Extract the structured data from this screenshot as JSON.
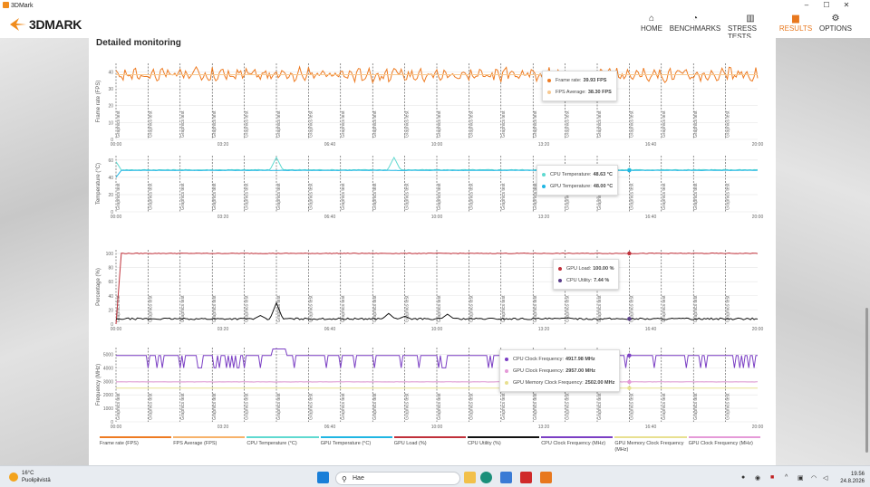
{
  "window": {
    "title": "3DMark",
    "controls": [
      "–",
      "☐",
      "✕"
    ]
  },
  "nav": {
    "brand": "3DMARK",
    "items": [
      {
        "label": "HOME",
        "icon": "home-icon",
        "glyph": "⌂",
        "active": false
      },
      {
        "label": "BENCHMARKS",
        "icon": "speedometer-icon",
        "glyph": "◔",
        "active": false
      },
      {
        "label": "STRESS TESTS",
        "icon": "bar-chart-icon",
        "glyph": "▥",
        "active": false
      },
      {
        "label": "RESULTS",
        "icon": "results-chart-icon",
        "glyph": "▆",
        "active": true
      },
      {
        "label": "OPTIONS",
        "icon": "gear-icon",
        "glyph": "⚙",
        "active": false
      }
    ],
    "accent": "#e8781e"
  },
  "panel": {
    "title": "Detailed monitoring"
  },
  "x_ticks": [
    "00:00",
    "03:20",
    "06:40",
    "10:00",
    "13:20",
    "16:40",
    "20:00"
  ],
  "x_max_sec": 1200,
  "test_marker_label": "Graphics test",
  "test_markers_sec": [
    0,
    60,
    120,
    180,
    240,
    300,
    360,
    420,
    480,
    540,
    600,
    660,
    720,
    780,
    840,
    900,
    960,
    1020,
    1080,
    1140
  ],
  "chart_data": [
    {
      "type": "line",
      "ylabel": "Frame rate (FPS)",
      "ylim": [
        0,
        45
      ],
      "yticks": [
        0,
        10,
        20,
        30,
        40
      ],
      "series": [
        {
          "name": "Frame rate (FPS)",
          "color": "#ee7b22",
          "base": 38.3,
          "noise": 3,
          "spikes": []
        },
        {
          "name": "FPS Average (FPS)",
          "color": "#f7c890",
          "base": 38.3,
          "noise": 0,
          "spikes": []
        }
      ],
      "tooltip": {
        "at_sec": 840,
        "rows": [
          {
            "label": "Frame rate:",
            "value": "39.93 FPS",
            "color": "#ee7b22"
          },
          {
            "label": "FPS Average:",
            "value": "38.30 FPS",
            "color": "#f7c890"
          }
        ]
      }
    },
    {
      "type": "line",
      "ylabel": "Temperature (°C)",
      "ylim": [
        0,
        65
      ],
      "yticks": [
        0,
        20,
        40,
        60
      ],
      "series": [
        {
          "name": "CPU Temperature (°C)",
          "color": "#5fd9d0",
          "base": 48.6,
          "noise": 0.4,
          "start": 58,
          "spikes": [
            [
              300,
              63
            ],
            [
              520,
              63
            ]
          ]
        },
        {
          "name": "GPU Temperature (°C)",
          "color": "#1fb6e3",
          "base": 48.0,
          "noise": 0.2,
          "start": 40,
          "spikes": []
        }
      ],
      "tooltip": {
        "at_sec": 960,
        "rows": [
          {
            "label": "CPU Temperature:",
            "value": "48.63 °C",
            "color": "#5fd9d0"
          },
          {
            "label": "GPU Temperature:",
            "value": "48.00 °C",
            "color": "#1fb6e3"
          }
        ]
      }
    },
    {
      "type": "line",
      "ylabel": "Percentage (%)",
      "ylim": [
        0,
        105
      ],
      "yticks": [
        0,
        20,
        40,
        60,
        80,
        100
      ],
      "series": [
        {
          "name": "GPU Load (%)",
          "color": "#c0303a",
          "base": 100,
          "noise": 0.5,
          "start": 0,
          "spikes": []
        },
        {
          "name": "CPU Utility (%)",
          "color": "#111111",
          "base": 7.4,
          "noise": 1.2,
          "start": 7,
          "spikes": [
            [
              270,
              12
            ],
            [
              300,
              30
            ],
            [
              510,
              15
            ],
            [
              540,
              11
            ],
            [
              620,
              14
            ],
            [
              845,
              9
            ]
          ]
        }
      ],
      "tooltip": {
        "at_sec": 960,
        "rows": [
          {
            "label": "GPU Load:",
            "value": "100.00 %",
            "color": "#c0303a"
          },
          {
            "label": "CPU Utility:",
            "value": "7.44 %",
            "color": "#5a3d8a"
          }
        ]
      }
    },
    {
      "type": "line",
      "ylabel": "Frequency (MHz)",
      "ylim": [
        0,
        5500
      ],
      "yticks": [
        0,
        1000,
        2000,
        3000,
        4000,
        5000
      ],
      "series": [
        {
          "name": "CPU Clock Frequency (MHz)",
          "color": "#7b3fc4",
          "base": 4918,
          "noise": 0,
          "start": 4918,
          "spikes": []
        },
        {
          "name": "GPU Clock Frequency (MHz)",
          "color": "#e59ad8",
          "base": 2957,
          "noise": 10,
          "start": 2957,
          "spikes": []
        },
        {
          "name": "GPU Memory Clock Frequency (MHz)",
          "color": "#e8e090",
          "base": 2502,
          "noise": 0,
          "start": 2502,
          "spikes": []
        }
      ],
      "tooltip": {
        "at_sec": 960,
        "rows": [
          {
            "label": "CPU Clock Frequency:",
            "value": "4917.98 MHz",
            "color": "#7b3fc4"
          },
          {
            "label": "GPU Clock Frequency:",
            "value": "2957.00 MHz",
            "color": "#e59ad8"
          },
          {
            "label": "GPU Memory Clock Frequency:",
            "value": "2502.00 MHz",
            "color": "#e8e090"
          }
        ]
      }
    }
  ],
  "legend": [
    {
      "label": "Frame rate (FPS)",
      "color": "#ee7b22"
    },
    {
      "label": "FPS Average (FPS)",
      "color": "#f7b26a"
    },
    {
      "label": "CPU Temperature (°C)",
      "color": "#5fd9d0"
    },
    {
      "label": "GPU Temperature (°C)",
      "color": "#1fb6e3"
    },
    {
      "label": "GPU Load (%)",
      "color": "#c0303a"
    },
    {
      "label": "CPU Utility (%)",
      "color": "#111111"
    },
    {
      "label": "CPU Clock Frequency (MHz)",
      "color": "#7b3fc4"
    },
    {
      "label": "GPU Memory Clock Frequency (MHz)",
      "color": "#e8e090"
    },
    {
      "label": "GPU Clock Frequency (MHz)",
      "color": "#e59ad8"
    }
  ],
  "taskbar": {
    "weather_temp": "16°C",
    "weather_desc": "Puolipilvistä",
    "search_placeholder": "Hae",
    "time": "19.56",
    "date": "24.8.2026"
  }
}
